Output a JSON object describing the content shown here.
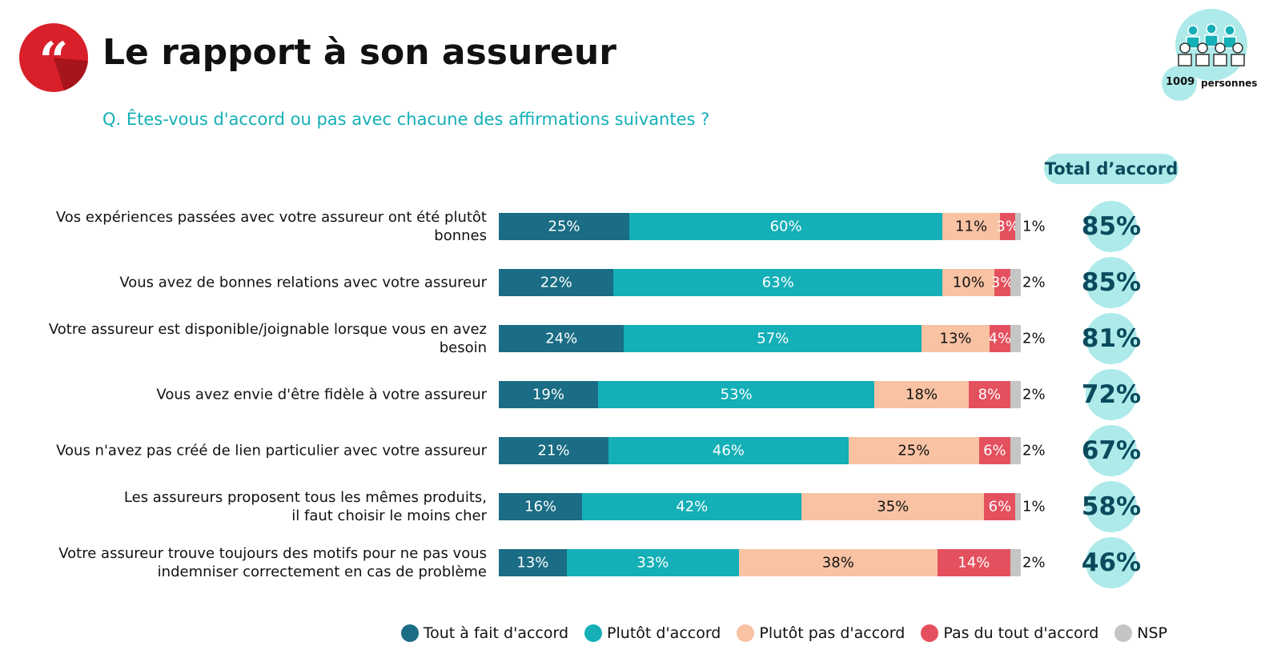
{
  "chart_data": {
    "type": "bar",
    "orientation": "horizontal",
    "stacked": true,
    "title": "Le rapport à son assureur",
    "subtitle": "Q. Êtes-vous d'accord ou pas avec chacune des affirmations suivantes ?",
    "respondents": 1009,
    "respondents_label": "personnes",
    "categories": [
      "Vos expériences passées avec votre assureur ont été plutôt bonnes",
      "Vous avez de bonnes relations avec votre assureur",
      "Votre assureur est disponible/joignable lorsque vous en avez besoin",
      "Vous avez envie d'être fidèle à votre assureur",
      "Vous n'avez pas créé de lien particulier avec votre assureur",
      "Les assureurs proposent tous les mêmes produits,\nil faut choisir le moins cher",
      "Votre assureur trouve toujours des motifs pour ne pas vous\nindemniser correctement en cas de problème"
    ],
    "series": [
      {
        "name": "Tout à fait d'accord",
        "color": "#1a6d84",
        "text_color": "#ffffff",
        "values": [
          25,
          22,
          24,
          19,
          21,
          16,
          13
        ],
        "value_labels": [
          "25%",
          "22%",
          "24%",
          "19%",
          "21%",
          "16%",
          "13%"
        ]
      },
      {
        "name": "Plutôt d'accord",
        "color": "#14afb7",
        "text_color": "#ffffff",
        "values": [
          60,
          63,
          57,
          53,
          46,
          42,
          33
        ],
        "value_labels": [
          "60%",
          "63%",
          "57%",
          "53%",
          "46%",
          "42%",
          "33%"
        ]
      },
      {
        "name": "Plutôt pas d'accord",
        "color": "#f8c2a3",
        "text_color": "#111111",
        "values": [
          11,
          10,
          13,
          18,
          25,
          35,
          38
        ],
        "value_labels": [
          "11%",
          "10%",
          "13%",
          "18%",
          "25%",
          "35%",
          "38%"
        ]
      },
      {
        "name": "Pas du tout d'accord",
        "color": "#e4505d",
        "text_color": "#ffffff",
        "values": [
          3,
          3,
          4,
          8,
          6,
          6,
          14
        ],
        "value_labels": [
          "3%",
          "3%",
          "4%",
          "8%",
          "6%",
          "6%",
          "14%"
        ]
      },
      {
        "name": "NSP",
        "color": "#c5c5c5",
        "text_color": "#111111",
        "values": [
          1,
          2,
          2,
          2,
          2,
          1,
          2
        ],
        "value_labels": [
          "1%",
          "2%",
          "2%",
          "2%",
          "2%",
          "1%",
          "2%"
        ]
      }
    ],
    "totals": {
      "name": "Total d’accord",
      "color": "#aeeaea",
      "text_color": "#0b4a5c",
      "values": [
        85,
        85,
        81,
        72,
        67,
        58,
        46
      ],
      "value_labels": [
        "85%",
        "85%",
        "81%",
        "72%",
        "67%",
        "58%",
        "46%"
      ]
    }
  }
}
